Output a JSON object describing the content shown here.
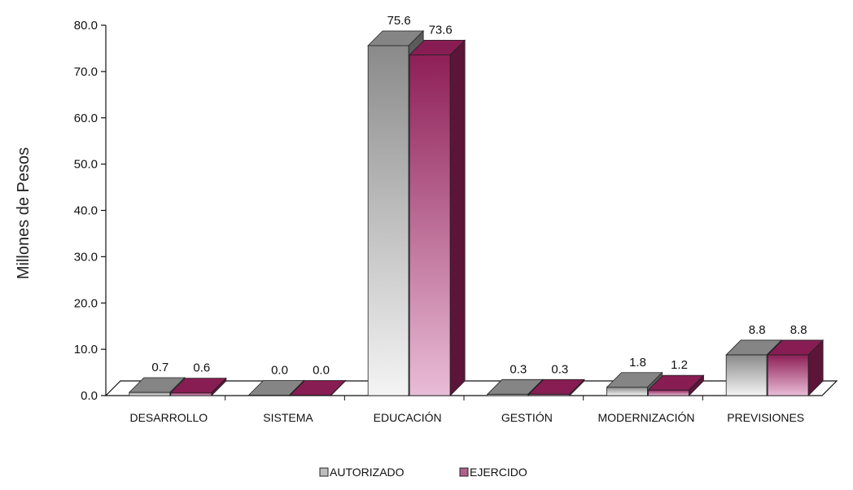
{
  "chart_data": {
    "type": "bar",
    "ylabel": "Millones de Pesos",
    "ylim": [
      0,
      80
    ],
    "yticks": [
      "0.0",
      "10.0",
      "20.0",
      "30.0",
      "40.0",
      "50.0",
      "60.0",
      "70.0",
      "80.0"
    ],
    "categories": [
      "DESARROLLO",
      "SISTEMA",
      "EDUCACIÓN",
      "GESTIÓN",
      "MODERNIZACIÓN",
      "PREVISIONES"
    ],
    "series": [
      {
        "name": "AUTORIZADO",
        "values": [
          0.7,
          0.0,
          75.6,
          0.3,
          1.8,
          8.8
        ],
        "labels": [
          "0.7",
          "0.0",
          "75.6",
          "0.3",
          "1.8",
          "8.8"
        ],
        "color": "#8c8c8c"
      },
      {
        "name": "EJERCIDO",
        "values": [
          0.6,
          0.0,
          73.6,
          0.3,
          1.2,
          8.8
        ],
        "labels": [
          "0.6",
          "0.0",
          "73.6",
          "0.3",
          "1.2",
          "8.8"
        ],
        "color": "#8e1f57"
      }
    ],
    "legend_position": "bottom-center",
    "grid": false
  }
}
